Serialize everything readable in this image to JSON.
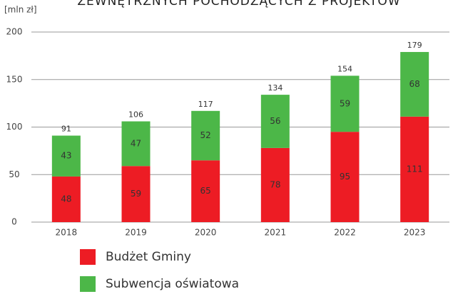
{
  "chart_data": {
    "type": "stacked_bar",
    "title": "ZEWNĘTRZNYCH POCHODZĄCYCH Z PROJEKTÓW",
    "y_label": "[mln zł]",
    "categories": [
      "2018",
      "2019",
      "2020",
      "2021",
      "2022",
      "2023"
    ],
    "series": [
      {
        "name": "Budżet Gminy",
        "color": "#ed1c24",
        "values": [
          48,
          59,
          65,
          78,
          95,
          111
        ]
      },
      {
        "name": "Subwencja oświatowa",
        "color": "#4cb748",
        "values": [
          43,
          47,
          52,
          56,
          59,
          68
        ]
      }
    ],
    "totals": [
      91,
      106,
      117,
      134,
      154,
      179
    ],
    "ylim": [
      0,
      200
    ],
    "yticks": [
      0,
      50,
      100,
      150,
      200
    ],
    "grid": true
  }
}
